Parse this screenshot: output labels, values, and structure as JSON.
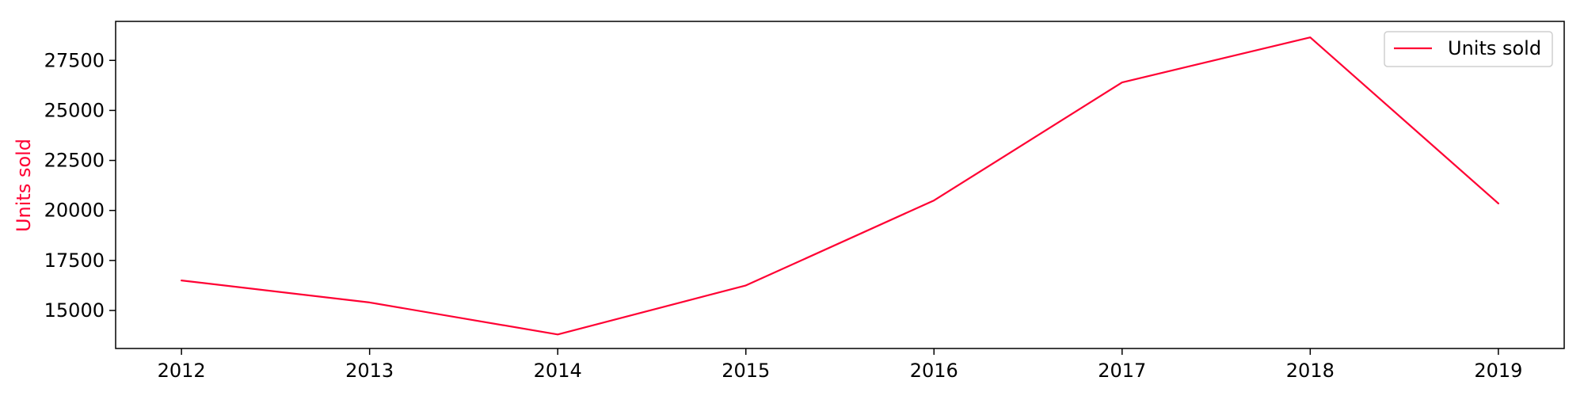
{
  "chart_data": {
    "type": "line",
    "title": "",
    "xlabel": "",
    "ylabel": "Units sold",
    "x": [
      2012,
      2013,
      2014,
      2015,
      2016,
      2017,
      2018,
      2019
    ],
    "series": [
      {
        "name": "Units sold",
        "values": [
          16500,
          15400,
          13800,
          16250,
          20500,
          26400,
          28650,
          20350
        ],
        "color": "#ff0033"
      }
    ],
    "xlim": [
      2011.65,
      2019.35
    ],
    "ylim": [
      13100,
      29450
    ],
    "xticks": [
      "2012",
      "2013",
      "2014",
      "2015",
      "2016",
      "2017",
      "2018",
      "2019"
    ],
    "yticks": [
      "15000",
      "17500",
      "20000",
      "22500",
      "25000",
      "27500"
    ],
    "ytick_values": [
      15000,
      17500,
      20000,
      22500,
      25000,
      27500
    ],
    "grid": false,
    "legend": {
      "position": "top-right",
      "entries": [
        "Units sold"
      ]
    }
  }
}
